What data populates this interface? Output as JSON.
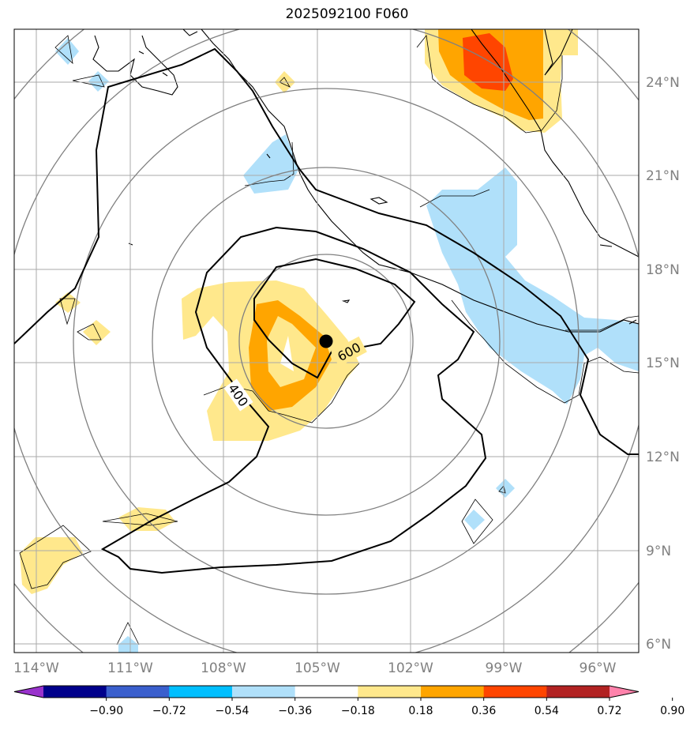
{
  "title": "2025092100 F060",
  "map": {
    "lat_labels": [
      "24°N",
      "21°N",
      "18°N",
      "15°N",
      "12°N",
      "9°N",
      "6°N"
    ],
    "lon_labels": [
      "114°W",
      "111°W",
      "108°W",
      "105°W",
      "102°W",
      "99°W",
      "96°W"
    ],
    "contour_labels": [
      "400",
      "600"
    ],
    "storm_marker": "storm-center"
  },
  "colorbar": {
    "ticks": [
      "−0.90",
      "−0.72",
      "−0.54",
      "−0.36",
      "−0.18",
      "0.18",
      "0.36",
      "0.54",
      "0.72",
      "0.90"
    ],
    "colors": [
      "#9932cc",
      "#00008b",
      "#3a5fcd",
      "#00bfff",
      "#b0e0fa",
      "#ffffff",
      "#ffe88c",
      "#ffa500",
      "#ff4500",
      "#b22222",
      "#ff82ab"
    ]
  }
}
